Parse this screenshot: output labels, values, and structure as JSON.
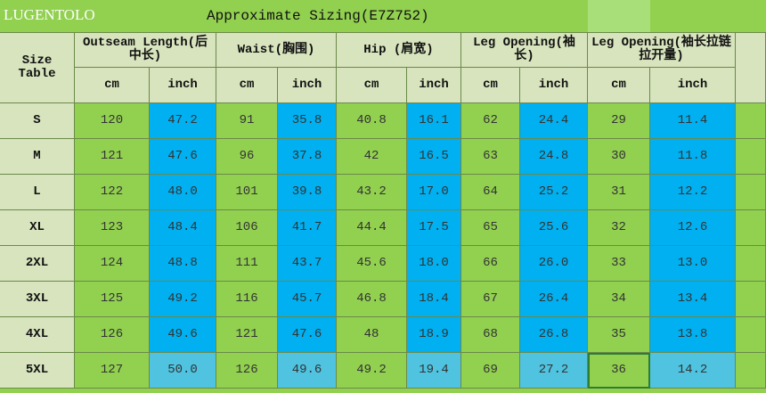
{
  "brand": "LUGENTOLO",
  "title": "Approximate Sizing(E7Z752)",
  "size_table_label": "Size Table",
  "groups": [
    {
      "label": "Outseam Length(后中长)",
      "units": [
        "cm",
        "inch"
      ]
    },
    {
      "label": "Waist(胸围)",
      "units": [
        "cm",
        "inch"
      ]
    },
    {
      "label": "Hip (肩宽)",
      "units": [
        "cm",
        "inch"
      ]
    },
    {
      "label": "Leg Opening(袖长)",
      "units": [
        "cm",
        "inch"
      ]
    },
    {
      "label": "Leg Opening(袖长拉链拉开量)",
      "units": [
        "cm",
        "inch"
      ]
    }
  ],
  "rows": [
    {
      "size": "S",
      "values": [
        "120",
        "47.2",
        "91",
        "35.8",
        "40.8",
        "16.1",
        "62",
        "24.4",
        "29",
        "11.4"
      ]
    },
    {
      "size": "M",
      "values": [
        "121",
        "47.6",
        "96",
        "37.8",
        "42",
        "16.5",
        "63",
        "24.8",
        "30",
        "11.8"
      ]
    },
    {
      "size": "L",
      "values": [
        "122",
        "48.0",
        "101",
        "39.8",
        "43.2",
        "17.0",
        "64",
        "25.2",
        "31",
        "12.2"
      ]
    },
    {
      "size": "XL",
      "values": [
        "123",
        "48.4",
        "106",
        "41.7",
        "44.4",
        "17.5",
        "65",
        "25.6",
        "32",
        "12.6"
      ]
    },
    {
      "size": "2XL",
      "values": [
        "124",
        "48.8",
        "111",
        "43.7",
        "45.6",
        "18.0",
        "66",
        "26.0",
        "33",
        "13.0"
      ]
    },
    {
      "size": "3XL",
      "values": [
        "125",
        "49.2",
        "116",
        "45.7",
        "46.8",
        "18.4",
        "67",
        "26.4",
        "34",
        "13.4"
      ]
    },
    {
      "size": "4XL",
      "values": [
        "126",
        "49.6",
        "121",
        "47.6",
        "48",
        "18.9",
        "68",
        "26.8",
        "35",
        "13.8"
      ]
    },
    {
      "size": "5XL",
      "values": [
        "127",
        "50.0",
        "126",
        "49.6",
        "49.2",
        "19.4",
        "69",
        "27.2",
        "36",
        "14.2"
      ]
    }
  ]
}
